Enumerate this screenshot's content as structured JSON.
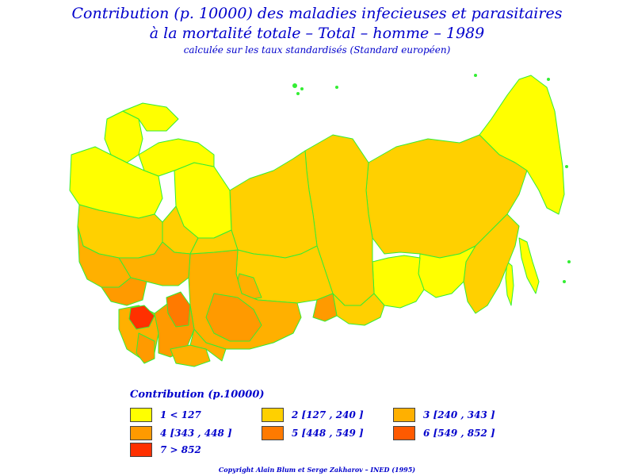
{
  "title": {
    "line1": "Contribution (p. 10000) des maladies infecieuses et parasitaires",
    "line2": "à la mortalité totale – Total – homme – 1989",
    "line3": "calculée sur les taux standardisés (Standard européen)"
  },
  "colors": {
    "border": "#33ee33",
    "class1": "#ffff00",
    "class2": "#ffd000",
    "class3": "#ffb000",
    "class4": "#ff9a00",
    "class5": "#ff7a00",
    "class6": "#ff5a00",
    "class7": "#ff3000"
  },
  "legend": {
    "title": "Contribution (p.10000)",
    "items": [
      {
        "id": "class1",
        "label": "1  <  127"
      },
      {
        "id": "class2",
        "label": "2  [127 , 240 ]"
      },
      {
        "id": "class3",
        "label": "3  [240 , 343 ]"
      },
      {
        "id": "class4",
        "label": "4  [343 , 448 ]"
      },
      {
        "id": "class5",
        "label": "5  [448 , 549 ]"
      },
      {
        "id": "class6",
        "label": "6  [549 , 852 ]"
      },
      {
        "id": "class7",
        "label": "7  >  852"
      }
    ]
  },
  "copyright": "Copyright Alain Blum et Serge Zakharov – INED (1995)"
}
